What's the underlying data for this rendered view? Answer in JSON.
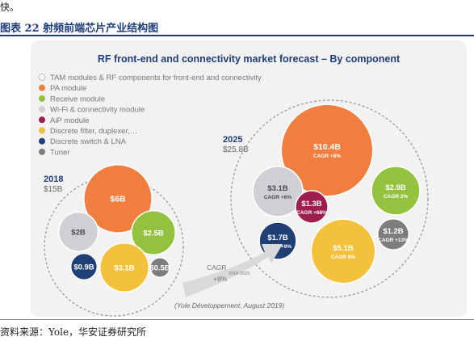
{
  "page": {
    "top_fragment": "快。",
    "caption": "图表 22 射频前端芯片产业结构图",
    "source": "资料来源：Yole，华安证券研究所"
  },
  "chart_data": {
    "type": "bubble",
    "title": "RF front-end and connectivity market forecast – By component",
    "legend": [
      {
        "label": "TAM modules & RF components for front-end and connectivity",
        "marker": "dashed-ring",
        "color": "#999999"
      },
      {
        "label": "PA module",
        "marker": "dot",
        "color": "#f07e3f"
      },
      {
        "label": "Receive module",
        "marker": "dot",
        "color": "#93c23e"
      },
      {
        "label": "Wi-Fi & connectivity module",
        "marker": "dot",
        "color": "#cfcfd4"
      },
      {
        "label": "AiP module",
        "marker": "dot",
        "color": "#9e1f4f"
      },
      {
        "label": "Discrete filter, duplexer,…",
        "marker": "dot",
        "color": "#f4c13d"
      },
      {
        "label": "Discrete switch & LNA",
        "marker": "dot",
        "color": "#1f3f75"
      },
      {
        "label": "Tuner",
        "marker": "dot",
        "color": "#7d7d7d"
      }
    ],
    "groups": [
      {
        "year": "2018",
        "total_label": "$15B",
        "total": 15,
        "bubbles": [
          {
            "component": "PA module",
            "label": "$6B",
            "value": 6,
            "cagr": ""
          },
          {
            "component": "Wi-Fi & connectivity module",
            "label": "$2B",
            "value": 2,
            "cagr": ""
          },
          {
            "component": "Receive module",
            "label": "$2.5B",
            "value": 2.5,
            "cagr": ""
          },
          {
            "component": "Discrete switch & LNA",
            "label": "$0.9B",
            "value": 0.9,
            "cagr": ""
          },
          {
            "component": "Discrete filter, duplexer,…",
            "label": "$3.1B",
            "value": 3.1,
            "cagr": ""
          },
          {
            "component": "Tuner",
            "label": "$0.5B",
            "value": 0.5,
            "cagr": ""
          }
        ]
      },
      {
        "year": "2025",
        "total_label": "$25.8B",
        "total": 25.8,
        "bubbles": [
          {
            "component": "PA module",
            "label": "$10.4B",
            "value": 10.4,
            "cagr": "CAGR +8%"
          },
          {
            "component": "Wi-Fi & connectivity module",
            "label": "$3.1B",
            "value": 3.1,
            "cagr": "CAGR +6%"
          },
          {
            "component": "AiP module",
            "label": "$1.3B",
            "value": 1.3,
            "cagr": "CAGR +68%"
          },
          {
            "component": "Receive module",
            "label": "$2.9B",
            "value": 2.9,
            "cagr": "CAGR 2%"
          },
          {
            "component": "Discrete switch & LNA",
            "label": "$1.7B",
            "value": 1.7,
            "cagr": "CAGR +9%"
          },
          {
            "component": "Discrete filter, duplexer,…",
            "label": "$5.1B",
            "value": 5.1,
            "cagr": "CAGR 8%"
          },
          {
            "component": "Tuner",
            "label": "$1.2B",
            "value": 1.2,
            "cagr": "CAGR +13%"
          }
        ]
      }
    ],
    "overall_cagr": {
      "label": "CAGR",
      "period": "2018-2025",
      "value": "+8%"
    },
    "note": "(Yole Développement, August 2019)"
  }
}
